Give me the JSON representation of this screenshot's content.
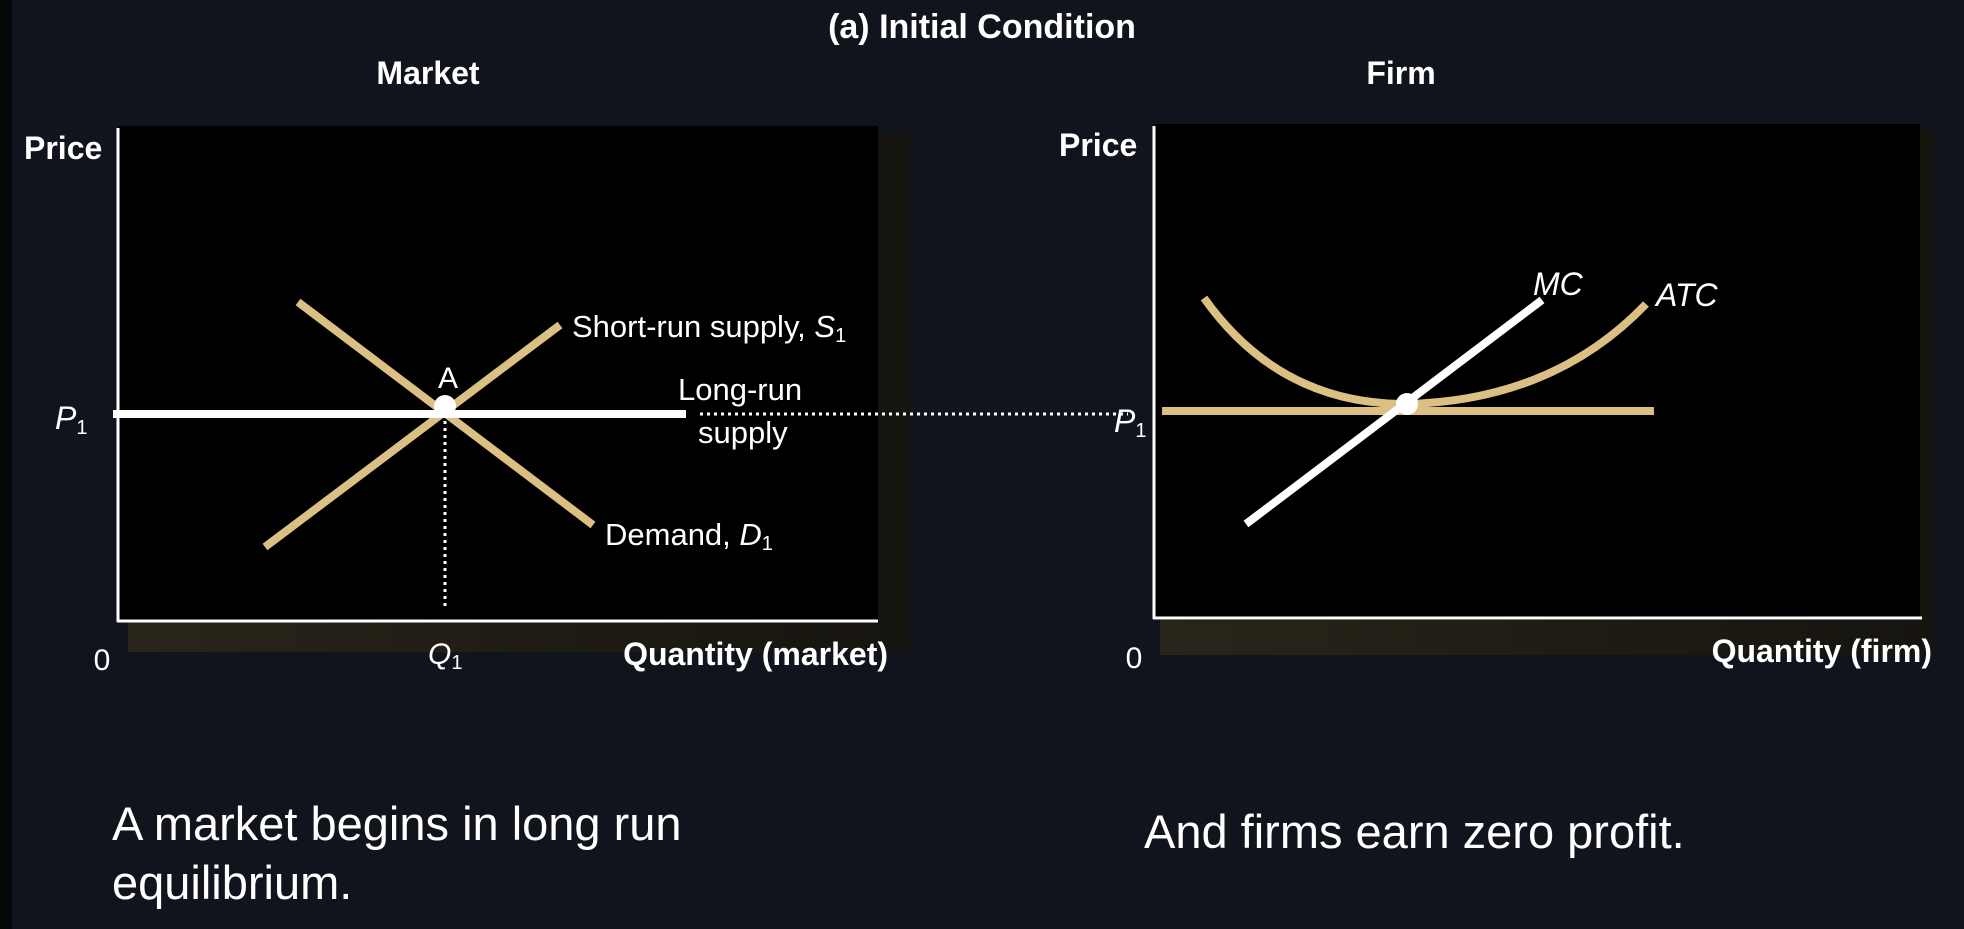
{
  "title": "(a) Initial Condition",
  "market": {
    "panel_title": "Market",
    "y_axis_label": "Price",
    "x_axis_label": "Quantity (market)",
    "origin": "0",
    "price_label": {
      "main": "P",
      "sub": "1"
    },
    "quantity_label": {
      "main": "Q",
      "sub": "1"
    },
    "point_label": "A",
    "supply_label": {
      "main": "Short-run supply, ",
      "italic": "S",
      "sub": "1"
    },
    "demand_label": {
      "main": "Demand, ",
      "italic": "D",
      "sub": "1"
    },
    "long_run_label": {
      "line1": "Long-run",
      "line2": "supply"
    }
  },
  "firm": {
    "panel_title": "Firm",
    "y_axis_label": "Price",
    "x_axis_label": "Quantity (firm)",
    "origin": "0",
    "price_label": {
      "main": "P",
      "sub": "1"
    },
    "mc_label": "MC",
    "atc_label": "ATC"
  },
  "captions": {
    "left": "A market begins in long run equilibrium.",
    "right": "And firms earn zero profit."
  },
  "colors": {
    "background": "#12141d",
    "plot_area": "#000000",
    "curve_gold": "#dcbf83",
    "line_white": "#ffffff"
  }
}
